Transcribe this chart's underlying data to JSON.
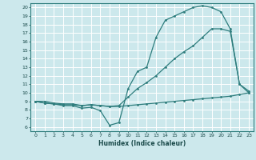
{
  "xlabel": "Humidex (Indice chaleur)",
  "bg_color": "#cce8ec",
  "grid_color": "#ffffff",
  "line_color": "#2e7d7d",
  "xlim": [
    -0.5,
    23.5
  ],
  "ylim": [
    5.5,
    20.5
  ],
  "xticks": [
    0,
    1,
    2,
    3,
    4,
    5,
    6,
    7,
    8,
    9,
    10,
    11,
    12,
    13,
    14,
    15,
    16,
    17,
    18,
    19,
    20,
    21,
    22,
    23
  ],
  "yticks": [
    6,
    7,
    8,
    9,
    10,
    11,
    12,
    13,
    14,
    15,
    16,
    17,
    18,
    19,
    20
  ],
  "line_diagonal_x": [
    0,
    1,
    2,
    3,
    4,
    5,
    6,
    7,
    8,
    9,
    10,
    11,
    12,
    13,
    14,
    15,
    16,
    17,
    18,
    19,
    20,
    21,
    22,
    23
  ],
  "line_diagonal_y": [
    9.0,
    9.0,
    8.8,
    8.7,
    8.7,
    8.5,
    8.6,
    8.5,
    8.4,
    8.5,
    9.5,
    10.5,
    11.2,
    12.0,
    13.0,
    14.0,
    14.8,
    15.5,
    16.5,
    17.5,
    17.5,
    17.2,
    11.0,
    10.2
  ],
  "line_flat_x": [
    0,
    1,
    2,
    3,
    4,
    5,
    6,
    7,
    8,
    9,
    10,
    11,
    12,
    13,
    14,
    15,
    16,
    17,
    18,
    19,
    20,
    21,
    22,
    23
  ],
  "line_flat_y": [
    9.0,
    8.8,
    8.7,
    8.6,
    8.6,
    8.5,
    8.6,
    8.5,
    8.4,
    8.4,
    8.5,
    8.6,
    8.7,
    8.8,
    8.9,
    9.0,
    9.1,
    9.2,
    9.3,
    9.4,
    9.5,
    9.6,
    9.8,
    10.0
  ],
  "line_peak_x": [
    0,
    1,
    2,
    3,
    4,
    5,
    6,
    7,
    8,
    9,
    10,
    11,
    12,
    13,
    14,
    15,
    16,
    17,
    18,
    19,
    20,
    21,
    22,
    23
  ],
  "line_peak_y": [
    9.0,
    8.8,
    8.7,
    8.5,
    8.5,
    8.2,
    8.3,
    7.9,
    6.2,
    6.5,
    10.5,
    12.5,
    13.0,
    16.5,
    18.5,
    19.0,
    19.5,
    20.0,
    20.2,
    20.0,
    19.5,
    17.5,
    11.0,
    10.0
  ]
}
